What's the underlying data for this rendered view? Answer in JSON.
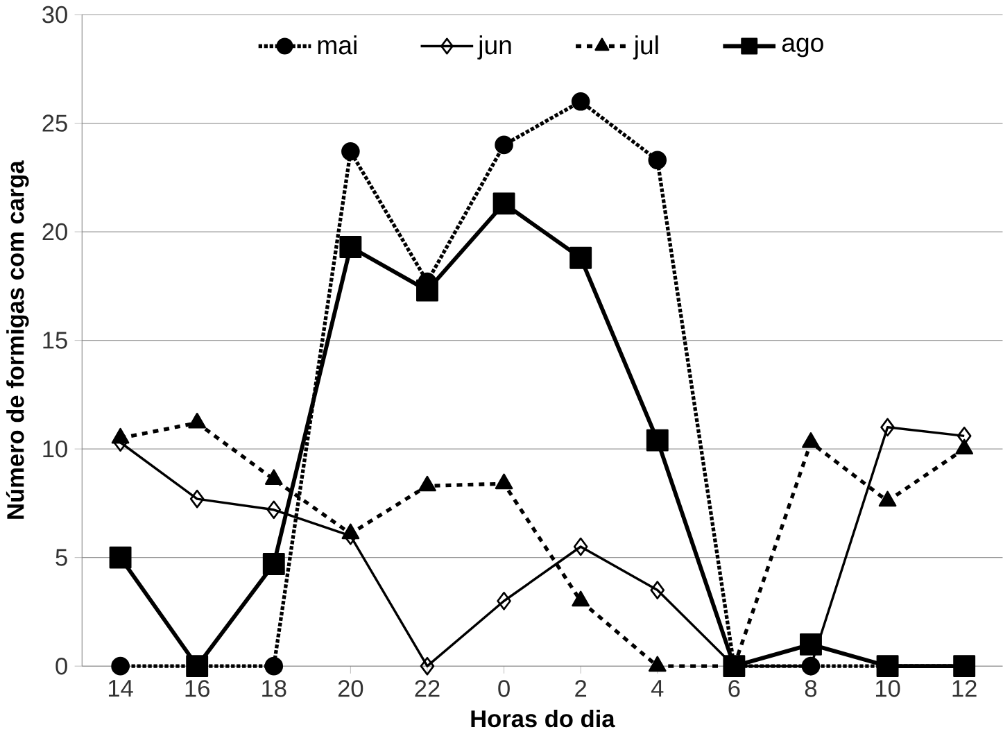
{
  "chart_data": {
    "type": "line",
    "xlabel": "Horas do dia",
    "ylabel": "Número de formigas com carga",
    "categories": [
      "14",
      "16",
      "18",
      "20",
      "22",
      "0",
      "2",
      "4",
      "6",
      "8",
      "10",
      "12"
    ],
    "series": [
      {
        "name": "mai",
        "color": "#000000",
        "line_style": "dotted",
        "marker": "circle",
        "values": [
          0,
          0,
          0,
          23.7,
          17.7,
          24,
          26,
          23.3,
          0,
          0,
          0,
          0
        ]
      },
      {
        "name": "jun",
        "color": "#000000",
        "line_style": "solid",
        "marker": "diamond",
        "values": [
          10.3,
          7.7,
          7.2,
          6,
          0,
          3,
          5.5,
          3.5,
          0,
          0,
          11,
          10.6
        ]
      },
      {
        "name": "jul",
        "color": "#000000",
        "line_style": "dashed",
        "marker": "triangle",
        "values": [
          10.5,
          11.2,
          8.6,
          6.1,
          8.3,
          8.4,
          3,
          0,
          0,
          10.3,
          7.6,
          10
        ]
      },
      {
        "name": "ago",
        "color": "#000000",
        "line_style": "solid",
        "marker": "square",
        "values": [
          5,
          0,
          4.7,
          19.3,
          17.3,
          21.3,
          18.8,
          10.4,
          0,
          1,
          0,
          0
        ]
      }
    ],
    "ylim": [
      0,
      30
    ],
    "yticks": [
      0,
      5,
      10,
      15,
      20,
      25,
      30
    ],
    "grid": "y",
    "legend": "top"
  }
}
